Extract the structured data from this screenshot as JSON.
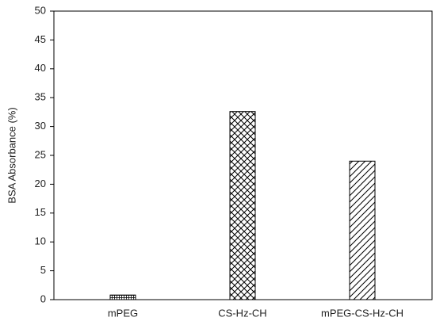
{
  "chart_data": {
    "type": "bar",
    "y_label": "BSA Absorbance (%)",
    "categories": [
      "mPEG",
      "CS-Hz-CH",
      "mPEG-CS-Hz-CH"
    ],
    "values": [
      0.8,
      32.6,
      24
    ],
    "patterns": [
      "grid",
      "crosshatch",
      "diagonal"
    ],
    "color": "#000000",
    "ylim": [
      0,
      50
    ],
    "yticks": [
      0,
      5,
      10,
      15,
      20,
      25,
      30,
      35,
      40,
      45,
      50
    ],
    "grid": false
  }
}
